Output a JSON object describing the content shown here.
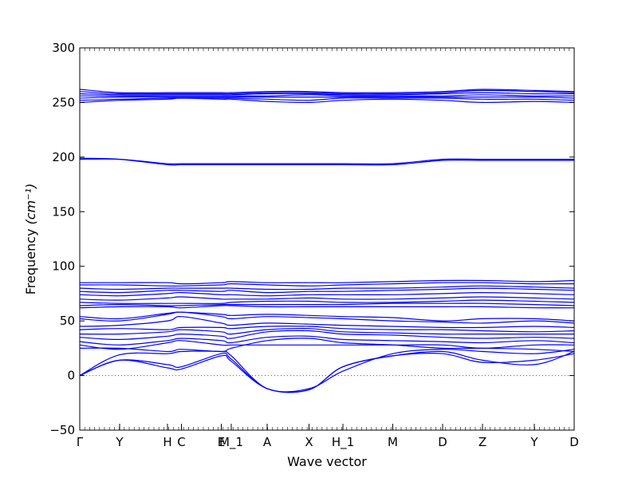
{
  "chart_data": {
    "type": "line",
    "xlabel": "Wave vector",
    "ylabel": "Frequency",
    "ylabel_unit": "(cm⁻¹)",
    "ylim": [
      -50,
      300
    ],
    "yticks": [
      -50,
      0,
      50,
      100,
      150,
      200,
      250,
      300
    ],
    "xlim": [
      0,
      12.4
    ],
    "xticks": [
      {
        "label": "Γ",
        "x": 0
      },
      {
        "label": "Y",
        "x": 1.0
      },
      {
        "label": "H",
        "x": 2.2
      },
      {
        "label": "C",
        "x": 2.55
      },
      {
        "label": "E",
        "x": 3.55
      },
      {
        "label": "M_1",
        "x": 3.8
      },
      {
        "label": "A",
        "x": 4.7
      },
      {
        "label": "X",
        "x": 5.75
      },
      {
        "label": "H_1",
        "x": 6.6
      },
      {
        "label": "M",
        "x": 7.85
      },
      {
        "label": "D",
        "x": 9.1
      },
      {
        "label": "Z",
        "x": 10.1
      },
      {
        "label": "Y",
        "x": 11.4
      },
      {
        "label": "D",
        "x": 12.4
      }
    ],
    "zero_line": true,
    "line_color": "#0000ff",
    "series": [
      {
        "x": [
          0,
          1,
          2.2,
          2.55,
          3.55,
          3.8,
          4.7,
          5.75,
          6.6,
          7.85,
          9.1,
          10.1,
          11.4,
          12.4
        ],
        "y": [
          0,
          14,
          7,
          6,
          18,
          13,
          -12,
          -13,
          8,
          18,
          20,
          12,
          14,
          20
        ]
      },
      {
        "x": [
          0,
          1,
          2.2,
          2.55,
          3.55,
          3.8,
          4.7,
          5.75,
          6.6,
          7.85,
          9.1,
          10.1,
          11.4,
          12.4
        ],
        "y": [
          0,
          14,
          10,
          8,
          20,
          15,
          -12,
          -13,
          8,
          18,
          22,
          14,
          10,
          22
        ]
      },
      {
        "x": [
          0,
          1,
          2.2,
          2.55,
          3.55,
          3.8,
          4.7,
          5.75,
          6.6,
          7.85,
          9.1,
          10.1,
          11.4,
          12.4
        ],
        "y": [
          0,
          19,
          20,
          22,
          22,
          18,
          -12,
          -12,
          4,
          20,
          24,
          22,
          20,
          24
        ]
      },
      {
        "x": [
          0,
          1,
          2.2,
          2.55,
          3.55,
          3.8,
          4.7,
          5.75,
          6.6,
          7.85,
          9.1,
          10.1,
          11.4,
          12.4
        ],
        "y": [
          25,
          25,
          22,
          24,
          22,
          25,
          32,
          34,
          30,
          28,
          25,
          25,
          24,
          22
        ]
      },
      {
        "x": [
          0,
          1,
          2.2,
          2.55,
          3.55,
          3.8,
          4.7,
          5.75,
          6.6,
          7.85,
          9.1,
          10.1,
          11.4,
          12.4
        ],
        "y": [
          28,
          24,
          30,
          32,
          28,
          28,
          28,
          28,
          28,
          28,
          28,
          25,
          28,
          28
        ]
      },
      {
        "x": [
          0,
          1,
          2.2,
          2.55,
          3.55,
          3.8,
          4.7,
          5.75,
          6.6,
          7.85,
          9.1,
          10.1,
          11.4,
          12.4
        ],
        "y": [
          31,
          28,
          32,
          34,
          32,
          30,
          35,
          36,
          33,
          32,
          31,
          30,
          32,
          30
        ]
      },
      {
        "x": [
          0,
          1,
          2.2,
          2.55,
          3.55,
          3.8,
          4.7,
          5.75,
          6.6,
          7.85,
          9.1,
          10.1,
          11.4,
          12.4
        ],
        "y": [
          35,
          33,
          36,
          38,
          36,
          34,
          40,
          41,
          38,
          37,
          35,
          34,
          35,
          34
        ]
      },
      {
        "x": [
          0,
          1,
          2.2,
          2.55,
          3.55,
          3.8,
          4.7,
          5.75,
          6.6,
          7.85,
          9.1,
          10.1,
          11.4,
          12.4
        ],
        "y": [
          38,
          38,
          40,
          42,
          40,
          38,
          42,
          43,
          40,
          39,
          38,
          38,
          38,
          38
        ]
      },
      {
        "x": [
          0,
          1,
          2.2,
          2.55,
          3.55,
          3.8,
          4.7,
          5.75,
          6.6,
          7.85,
          9.1,
          10.1,
          11.4,
          12.4
        ],
        "y": [
          42,
          43,
          42,
          44,
          44,
          43,
          45,
          45,
          43,
          42,
          42,
          41,
          40,
          41
        ]
      },
      {
        "x": [
          0,
          1,
          2.2,
          2.55,
          3.55,
          3.8,
          4.7,
          5.75,
          6.6,
          7.85,
          9.1,
          10.1,
          11.4,
          12.4
        ],
        "y": [
          45,
          46,
          50,
          54,
          48,
          46,
          48,
          47,
          46,
          45,
          44,
          44,
          45,
          44
        ]
      },
      {
        "x": [
          0,
          1,
          2.2,
          2.55,
          3.55,
          3.8,
          4.7,
          5.75,
          6.6,
          7.85,
          9.1,
          10.1,
          11.4,
          12.4
        ],
        "y": [
          52,
          50,
          56,
          58,
          54,
          52,
          54,
          53,
          52,
          50,
          49,
          48,
          50,
          48
        ]
      },
      {
        "x": [
          0,
          1,
          2.2,
          2.55,
          3.55,
          3.8,
          4.7,
          5.75,
          6.6,
          7.85,
          9.1,
          10.1,
          11.4,
          12.4
        ],
        "y": [
          54,
          52,
          57,
          58,
          56,
          55,
          56,
          55,
          54,
          53,
          50,
          52,
          52,
          50
        ]
      },
      {
        "x": [
          0,
          1,
          2.2,
          2.55,
          3.55,
          3.8,
          4.7,
          5.75,
          6.6,
          7.85,
          9.1,
          10.1,
          11.4,
          12.4
        ],
        "y": [
          62,
          63,
          63,
          62,
          64,
          64,
          63,
          63,
          63,
          63,
          63,
          63,
          62,
          62
        ]
      },
      {
        "x": [
          0,
          1,
          2.2,
          2.55,
          3.55,
          3.8,
          4.7,
          5.75,
          6.6,
          7.85,
          9.1,
          10.1,
          11.4,
          12.4
        ],
        "y": [
          64,
          65,
          64,
          64,
          65,
          65,
          65,
          65,
          65,
          66,
          66,
          66,
          65,
          64
        ]
      },
      {
        "x": [
          0,
          1,
          2.2,
          2.55,
          3.55,
          3.8,
          4.7,
          5.75,
          6.6,
          7.85,
          9.1,
          10.1,
          11.4,
          12.4
        ],
        "y": [
          67,
          66,
          66,
          66,
          66,
          67,
          68,
          68,
          67,
          67,
          68,
          69,
          68,
          67
        ]
      },
      {
        "x": [
          0,
          1,
          2.2,
          2.55,
          3.55,
          3.8,
          4.7,
          5.75,
          6.6,
          7.85,
          9.1,
          10.1,
          11.4,
          12.4
        ],
        "y": [
          70,
          69,
          71,
          72,
          70,
          70,
          70,
          71,
          70,
          70,
          71,
          72,
          71,
          70
        ]
      },
      {
        "x": [
          0,
          1,
          2.2,
          2.55,
          3.55,
          3.8,
          4.7,
          5.75,
          6.6,
          7.85,
          9.1,
          10.1,
          11.4,
          12.4
        ],
        "y": [
          74,
          73,
          75,
          76,
          74,
          74,
          73,
          74,
          74,
          74,
          75,
          76,
          75,
          74
        ]
      },
      {
        "x": [
          0,
          1,
          2.2,
          2.55,
          3.55,
          3.8,
          4.7,
          5.75,
          6.6,
          7.85,
          9.1,
          10.1,
          11.4,
          12.4
        ],
        "y": [
          77,
          76,
          78,
          78,
          77,
          78,
          76,
          77,
          77,
          78,
          79,
          80,
          79,
          78
        ]
      },
      {
        "x": [
          0,
          1,
          2.2,
          2.55,
          3.55,
          3.8,
          4.7,
          5.75,
          6.6,
          7.85,
          9.1,
          10.1,
          11.4,
          12.4
        ],
        "y": [
          80,
          79,
          80,
          80,
          80,
          80,
          79,
          79,
          80,
          80,
          81,
          82,
          81,
          80
        ]
      },
      {
        "x": [
          0,
          1,
          2.2,
          2.55,
          3.55,
          3.8,
          4.7,
          5.75,
          6.6,
          7.85,
          9.1,
          10.1,
          11.4,
          12.4
        ],
        "y": [
          83,
          83,
          82,
          82,
          83,
          84,
          83,
          82,
          83,
          84,
          85,
          85,
          84,
          84
        ]
      },
      {
        "x": [
          0,
          1,
          2.2,
          2.55,
          3.55,
          3.8,
          4.7,
          5.75,
          6.6,
          7.85,
          9.1,
          10.1,
          11.4,
          12.4
        ],
        "y": [
          85,
          85,
          85,
          84,
          85,
          86,
          85,
          85,
          85,
          86,
          87,
          87,
          86,
          87
        ]
      },
      {
        "x": [
          0,
          1,
          2.2,
          2.55,
          3.55,
          3.8,
          4.7,
          5.75,
          6.6,
          7.85,
          9.1,
          10.1,
          11.4,
          12.4
        ],
        "y": [
          198,
          198,
          194,
          194,
          194,
          194,
          194,
          194,
          194,
          194,
          198,
          198,
          198,
          198
        ]
      },
      {
        "x": [
          0,
          1,
          2.2,
          2.55,
          3.55,
          3.8,
          4.7,
          5.75,
          6.6,
          7.85,
          9.1,
          10.1,
          11.4,
          12.4
        ],
        "y": [
          199,
          198,
          193,
          193,
          193,
          193,
          193,
          193,
          193,
          193,
          197,
          197,
          197,
          197
        ]
      },
      {
        "x": [
          0,
          1,
          2.2,
          2.55,
          3.55,
          3.8,
          4.7,
          5.75,
          6.6,
          7.85,
          9.1,
          10.1,
          11.4,
          12.4
        ],
        "y": [
          250,
          252,
          253,
          254,
          253,
          253,
          251,
          250,
          252,
          253,
          252,
          250,
          251,
          250
        ]
      },
      {
        "x": [
          0,
          1,
          2.2,
          2.55,
          3.55,
          3.8,
          4.7,
          5.75,
          6.6,
          7.85,
          9.1,
          10.1,
          11.4,
          12.4
        ],
        "y": [
          252,
          253,
          254,
          254,
          254,
          254,
          253,
          252,
          254,
          254,
          254,
          253,
          253,
          252
        ]
      },
      {
        "x": [
          0,
          1,
          2.2,
          2.55,
          3.55,
          3.8,
          4.7,
          5.75,
          6.6,
          7.85,
          9.1,
          10.1,
          11.4,
          12.4
        ],
        "y": [
          254,
          255,
          255,
          255,
          255,
          255,
          255,
          255,
          255,
          255,
          255,
          255,
          255,
          254
        ]
      },
      {
        "x": [
          0,
          1,
          2.2,
          2.55,
          3.55,
          3.8,
          4.7,
          5.75,
          6.6,
          7.85,
          9.1,
          10.1,
          11.4,
          12.4
        ],
        "y": [
          256,
          256,
          256,
          256,
          256,
          256,
          256,
          257,
          256,
          256,
          256,
          257,
          256,
          256
        ]
      },
      {
        "x": [
          0,
          1,
          2.2,
          2.55,
          3.55,
          3.8,
          4.7,
          5.75,
          6.6,
          7.85,
          9.1,
          10.1,
          11.4,
          12.4
        ],
        "y": [
          258,
          257,
          257,
          257,
          257,
          257,
          258,
          258,
          257,
          257,
          258,
          259,
          258,
          258
        ]
      },
      {
        "x": [
          0,
          1,
          2.2,
          2.55,
          3.55,
          3.8,
          4.7,
          5.75,
          6.6,
          7.85,
          9.1,
          10.1,
          11.4,
          12.4
        ],
        "y": [
          260,
          258,
          258,
          258,
          258,
          258,
          259,
          259,
          258,
          258,
          259,
          261,
          260,
          259
        ]
      },
      {
        "x": [
          0,
          1,
          2.2,
          2.55,
          3.55,
          3.8,
          4.7,
          5.75,
          6.6,
          7.85,
          9.1,
          10.1,
          11.4,
          12.4
        ],
        "y": [
          262,
          259,
          259,
          259,
          259,
          259,
          260,
          260,
          259,
          259,
          260,
          262,
          261,
          260
        ]
      }
    ]
  }
}
